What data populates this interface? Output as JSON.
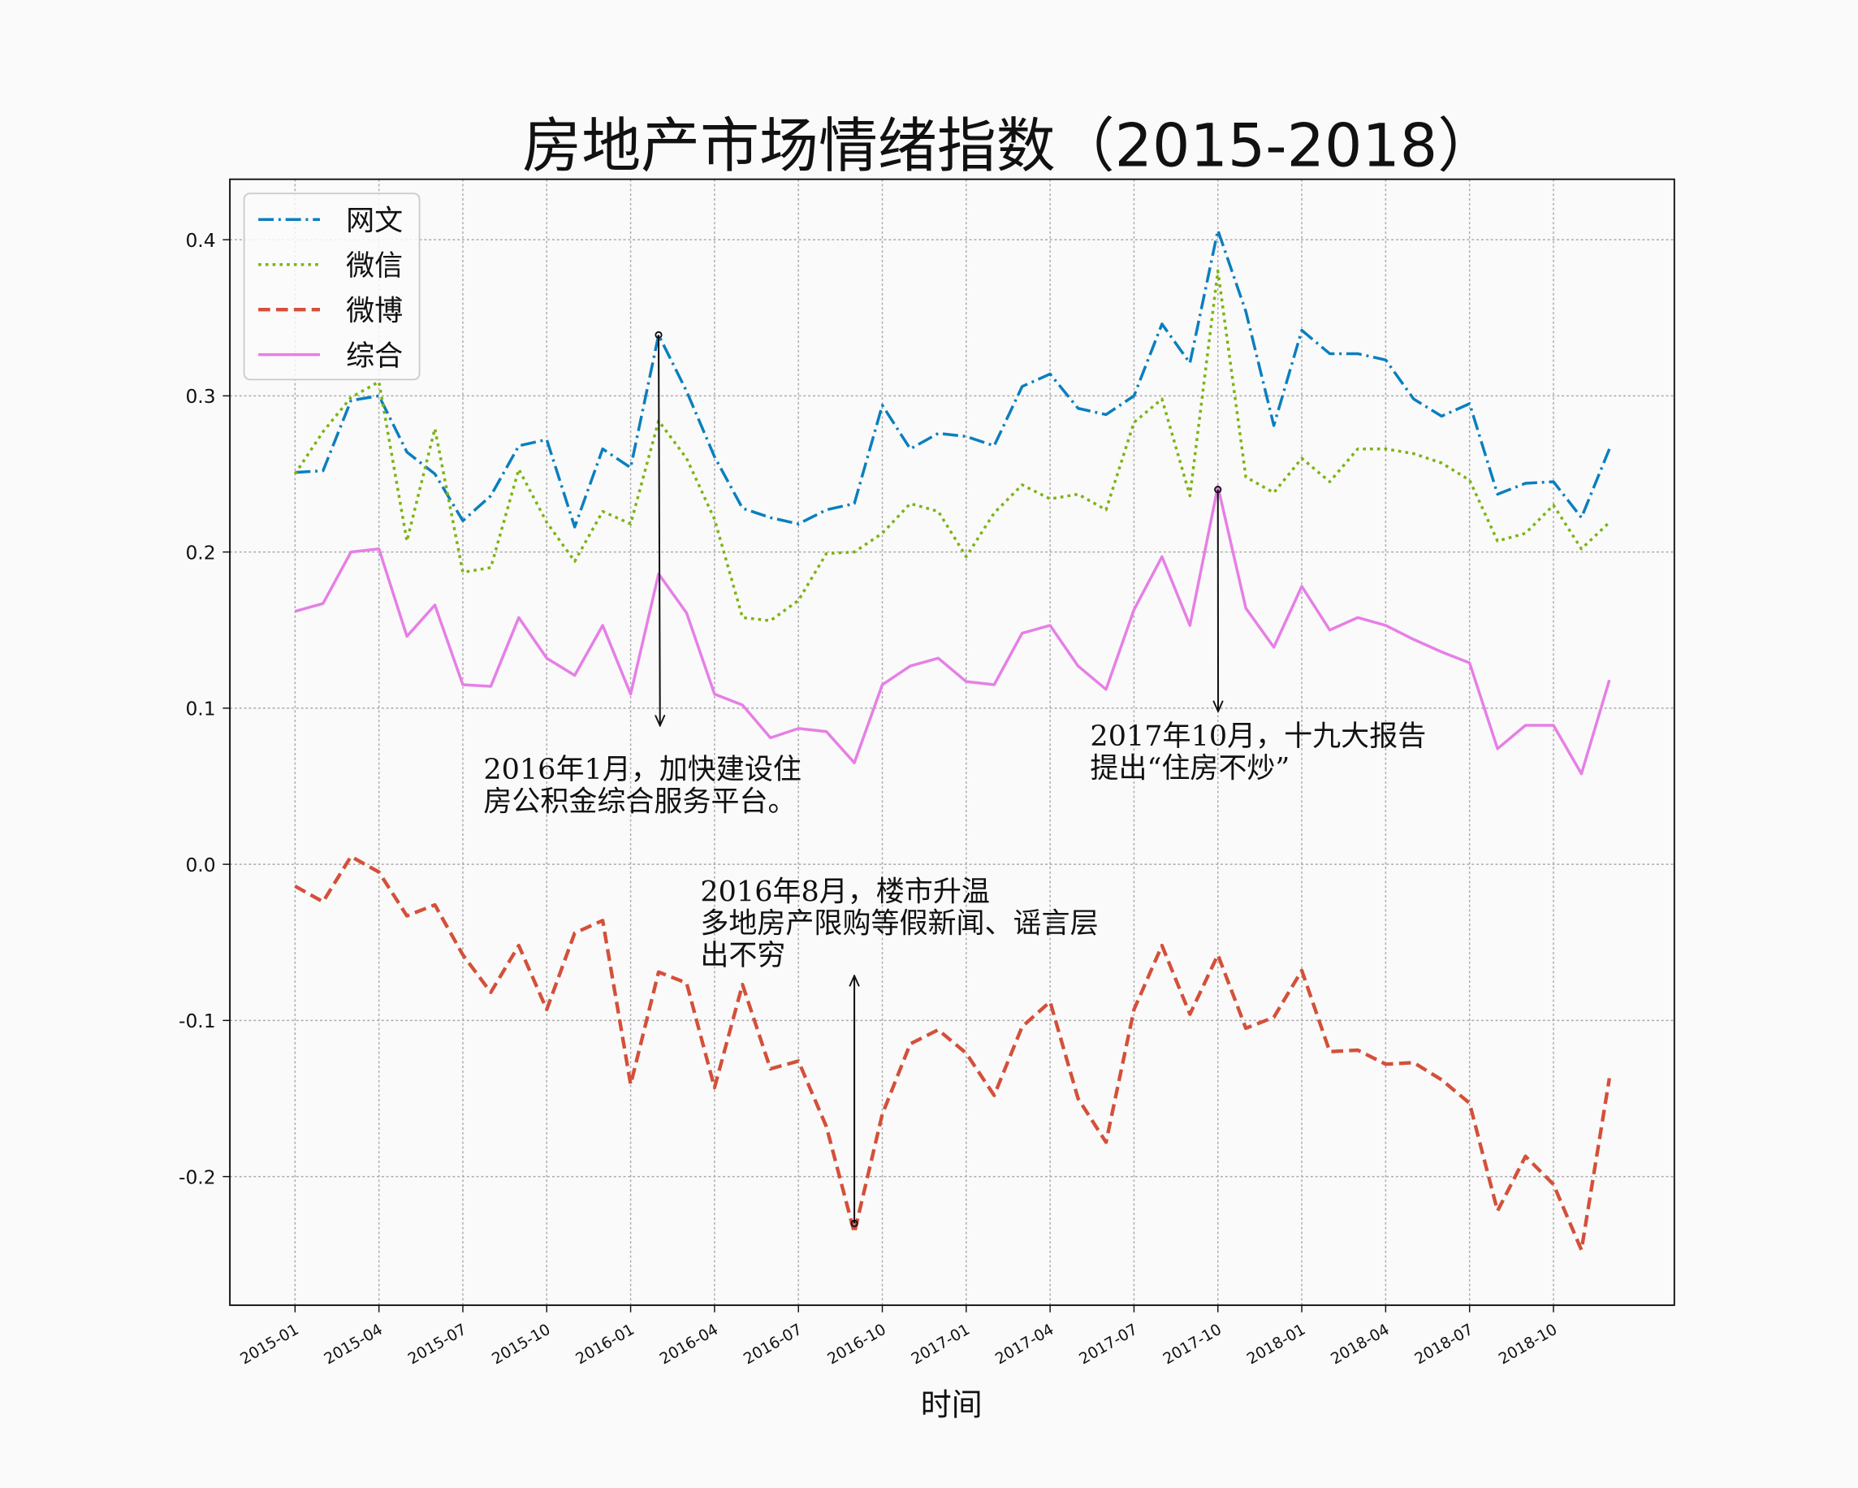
{
  "chart_data": {
    "type": "line",
    "title": "房地产市场情绪指数（2015-2018）",
    "xlabel": "时间",
    "ylabel": "",
    "ylim": [
      -0.282,
      0.439
    ],
    "yticks": [
      -0.2,
      -0.1,
      0.0,
      0.1,
      0.2,
      0.3,
      0.4
    ],
    "xticks": [
      "2015-01",
      "2015-04",
      "2015-07",
      "2015-10",
      "2016-01",
      "2016-04",
      "2016-07",
      "2016-10",
      "2017-01",
      "2017-04",
      "2017-07",
      "2017-10",
      "2018-01",
      "2018-04",
      "2018-07",
      "2018-10"
    ],
    "grid": true,
    "legend": "top-left",
    "x_start": "2015-01",
    "x": [
      "2015-01",
      "2015-02",
      "2015-03",
      "2015-04",
      "2015-05",
      "2015-06",
      "2015-07",
      "2015-08",
      "2015-09",
      "2015-10",
      "2015-11",
      "2015-12",
      "2016-01",
      "2016-02",
      "2016-03",
      "2016-04",
      "2016-05",
      "2016-06",
      "2016-07",
      "2016-08",
      "2016-09",
      "2016-10",
      "2016-11",
      "2016-12",
      "2017-01",
      "2017-02",
      "2017-03",
      "2017-04",
      "2017-05",
      "2017-06",
      "2017-07",
      "2017-08",
      "2017-09",
      "2017-10",
      "2017-11",
      "2017-12",
      "2018-01",
      "2018-02",
      "2018-03",
      "2018-04",
      "2018-05",
      "2018-06",
      "2018-07",
      "2018-08",
      "2018-09",
      "2018-10",
      "2018-11",
      "2018-12"
    ],
    "series": [
      {
        "name": "网文",
        "color": "#0a7fbf",
        "style": "dashdot",
        "values": [
          0.251,
          0.252,
          0.297,
          0.3,
          0.264,
          0.25,
          0.22,
          0.236,
          0.268,
          0.272,
          0.216,
          0.266,
          0.254,
          0.339,
          0.303,
          0.261,
          0.228,
          0.222,
          0.218,
          0.227,
          0.231,
          0.294,
          0.266,
          0.276,
          0.274,
          0.268,
          0.306,
          0.314,
          0.292,
          0.288,
          0.3,
          0.346,
          0.321,
          0.406,
          0.354,
          0.281,
          0.342,
          0.327,
          0.327,
          0.323,
          0.298,
          0.287,
          0.295,
          0.237,
          0.244,
          0.245,
          0.222,
          0.266
        ]
      },
      {
        "name": "微信",
        "color": "#7cb414",
        "style": "dotted",
        "values": [
          0.25,
          0.277,
          0.299,
          0.309,
          0.207,
          0.279,
          0.187,
          0.19,
          0.253,
          0.219,
          0.194,
          0.226,
          0.218,
          0.284,
          0.26,
          0.221,
          0.158,
          0.156,
          0.169,
          0.199,
          0.2,
          0.212,
          0.231,
          0.226,
          0.197,
          0.225,
          0.243,
          0.234,
          0.237,
          0.227,
          0.283,
          0.298,
          0.236,
          0.38,
          0.248,
          0.238,
          0.26,
          0.245,
          0.266,
          0.266,
          0.263,
          0.257,
          0.246,
          0.207,
          0.212,
          0.23,
          0.202,
          0.219
        ]
      },
      {
        "name": "微博",
        "color": "#d4503a",
        "style": "dashed",
        "values": [
          -0.014,
          -0.024,
          0.005,
          -0.005,
          -0.033,
          -0.026,
          -0.058,
          -0.082,
          -0.052,
          -0.093,
          -0.044,
          -0.036,
          -0.141,
          -0.069,
          -0.076,
          -0.143,
          -0.077,
          -0.131,
          -0.126,
          -0.168,
          -0.236,
          -0.16,
          -0.115,
          -0.106,
          -0.121,
          -0.148,
          -0.104,
          -0.088,
          -0.15,
          -0.178,
          -0.093,
          -0.052,
          -0.096,
          -0.058,
          -0.105,
          -0.098,
          -0.068,
          -0.12,
          -0.119,
          -0.128,
          -0.127,
          -0.138,
          -0.153,
          -0.222,
          -0.187,
          -0.205,
          -0.247,
          -0.137
        ]
      },
      {
        "name": "综合",
        "color": "#e67fe6",
        "style": "solid",
        "values": [
          0.162,
          0.167,
          0.2,
          0.202,
          0.146,
          0.166,
          0.115,
          0.114,
          0.158,
          0.132,
          0.121,
          0.153,
          0.109,
          0.186,
          0.161,
          0.109,
          0.102,
          0.081,
          0.087,
          0.085,
          0.065,
          0.115,
          0.127,
          0.132,
          0.117,
          0.115,
          0.148,
          0.153,
          0.127,
          0.112,
          0.163,
          0.197,
          0.153,
          0.242,
          0.164,
          0.139,
          0.178,
          0.15,
          0.158,
          0.153,
          0.144,
          0.136,
          0.129,
          0.074,
          0.089,
          0.089,
          0.058,
          0.118
        ]
      }
    ],
    "annotations": [
      {
        "lines": [
          "2016年1月，加快建设住",
          "房公积金综合服务平台。"
        ],
        "xy": [
          "2016-02",
          0.339
        ],
        "xytext": [
          "2015-08",
          0.06
        ]
      },
      {
        "lines": [
          "2017年10月，十九大报告",
          "提出“住房不炒”"
        ],
        "xy": [
          "2017-10",
          0.24
        ],
        "xytext": [
          "2017-06",
          0.08
        ]
      },
      {
        "lines": [
          "2016年8月，楼市升温",
          "多地房产限购等假新闻、谣言层",
          "出不穷"
        ],
        "xy": [
          "2016-09",
          -0.23
        ],
        "xytext": [
          "2016-01",
          -0.02
        ]
      }
    ]
  }
}
